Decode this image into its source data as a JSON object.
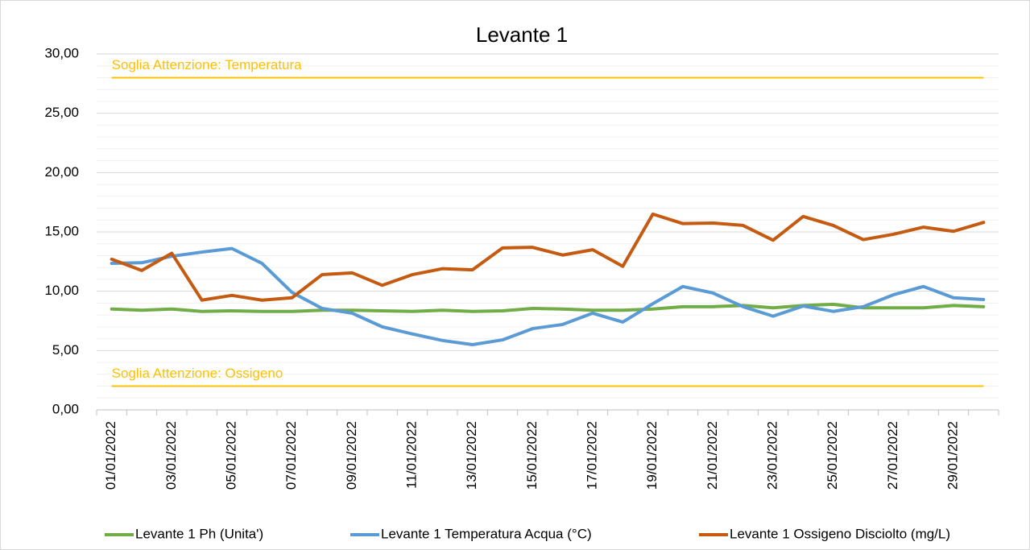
{
  "chart_data": {
    "type": "line",
    "title": "Levante 1",
    "categories": [
      "01/01/2022",
      null,
      "03/01/2022",
      null,
      "05/01/2022",
      null,
      "07/01/2022",
      null,
      "09/01/2022",
      null,
      "11/01/2022",
      null,
      "13/01/2022",
      null,
      "15/01/2022",
      null,
      "17/01/2022",
      null,
      "19/01/2022",
      null,
      "21/01/2022",
      null,
      "23/01/2022",
      null,
      "25/01/2022",
      null,
      "27/01/2022",
      null,
      "29/01/2022",
      null
    ],
    "series": [
      {
        "name": "Levante 1 Ph (Unita')",
        "color": "#70ad47",
        "values": [
          8.5,
          8.4,
          8.5,
          8.3,
          8.35,
          8.3,
          8.3,
          8.4,
          8.4,
          8.35,
          8.3,
          8.4,
          8.3,
          8.35,
          8.55,
          8.5,
          8.4,
          8.4,
          8.5,
          8.7,
          8.7,
          8.8,
          8.6,
          8.8,
          8.9,
          8.6,
          8.6,
          8.6,
          8.8,
          8.7
        ]
      },
      {
        "name": "Levante 1 Temperatura Acqua (°C)",
        "color": "#5b9bd5",
        "values": [
          12.35,
          12.4,
          12.95,
          13.3,
          13.6,
          12.35,
          9.9,
          8.55,
          8.15,
          7.0,
          6.4,
          5.85,
          5.5,
          5.9,
          6.85,
          7.2,
          8.15,
          7.4,
          8.95,
          10.4,
          9.85,
          8.7,
          7.9,
          8.75,
          8.3,
          8.7,
          9.7,
          10.4,
          9.45,
          9.3
        ]
      },
      {
        "name": "Levante 1 Ossigeno Disciolto (mg/L)",
        "color": "#c55a11",
        "values": [
          12.7,
          11.75,
          13.2,
          9.25,
          9.65,
          9.25,
          9.45,
          11.4,
          11.55,
          10.5,
          11.4,
          11.9,
          11.8,
          13.65,
          13.7,
          13.05,
          13.5,
          12.1,
          16.5,
          15.7,
          15.75,
          15.55,
          14.3,
          16.3,
          15.55,
          14.35,
          14.8,
          15.4,
          15.05,
          15.8
        ]
      }
    ],
    "thresholds": [
      {
        "label": "Soglia Attenzione: Temperatura",
        "value": 28,
        "color": "#ffc000"
      },
      {
        "label": "Soglia Attenzione: Ossigeno",
        "value": 2,
        "color": "#ffc000"
      }
    ],
    "ylim": [
      0,
      30
    ],
    "yticks": [
      {
        "value": 0,
        "label": "0,00"
      },
      {
        "value": 5,
        "label": "5,00"
      },
      {
        "value": 10,
        "label": "10,00"
      },
      {
        "value": 15,
        "label": "15,00"
      },
      {
        "value": 20,
        "label": "20,00"
      },
      {
        "value": 25,
        "label": "25,00"
      },
      {
        "value": 30,
        "label": "30,00"
      }
    ],
    "grid": true,
    "minor_grid": true,
    "legend": "bottom"
  }
}
